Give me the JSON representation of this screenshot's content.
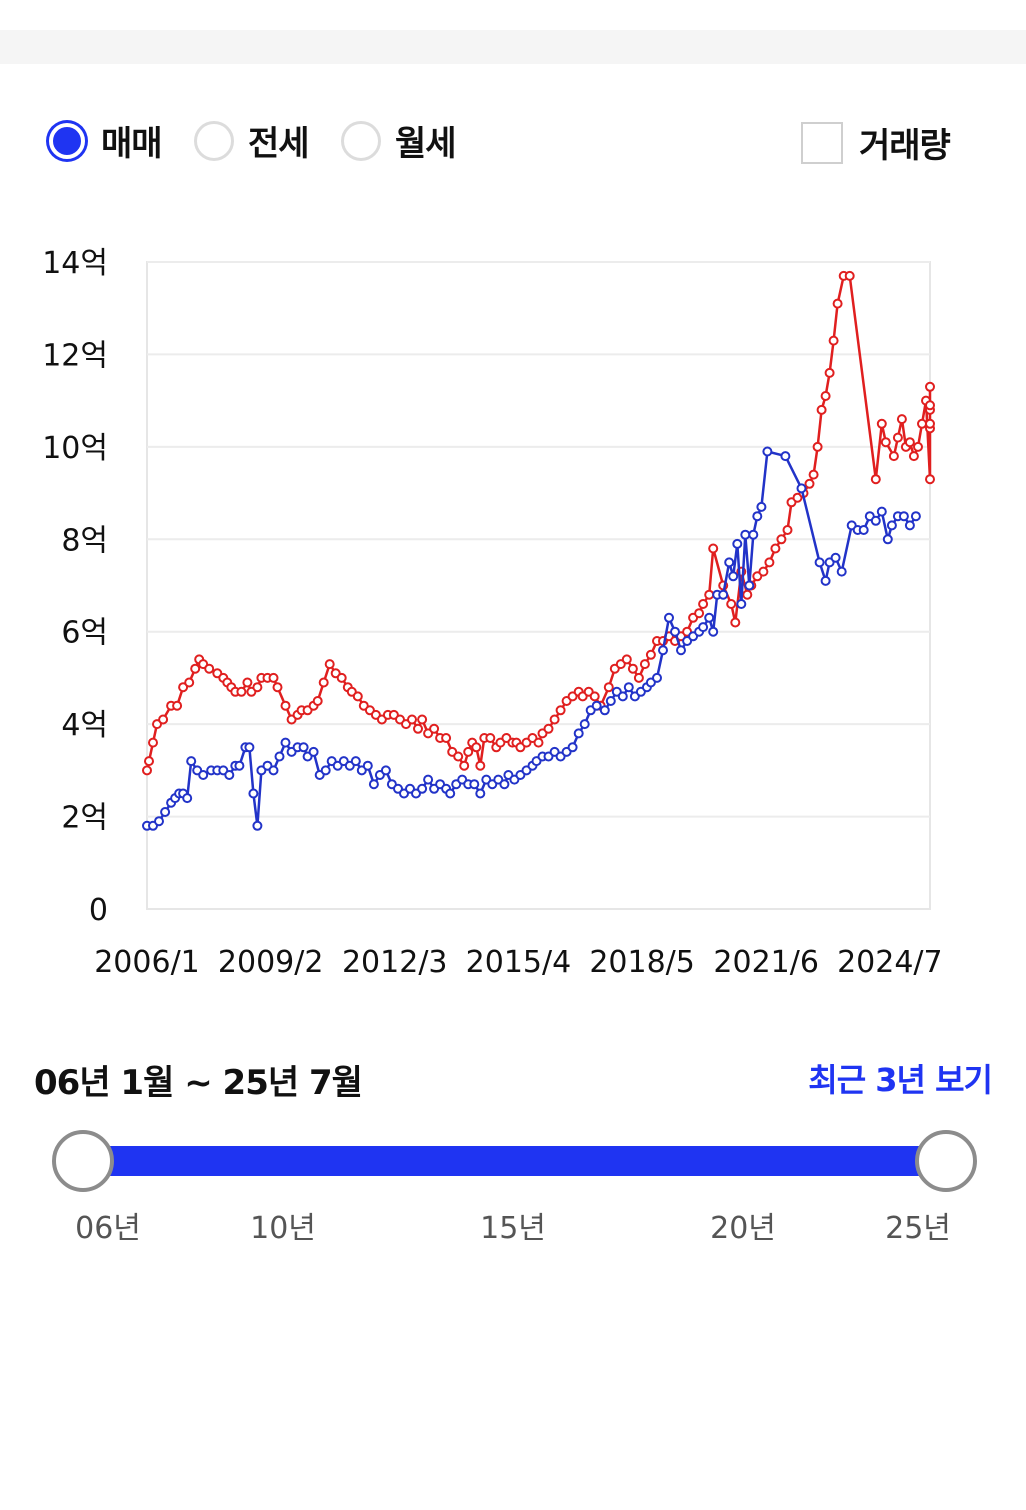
{
  "price_types": [
    {
      "label": "매매",
      "checked": true
    },
    {
      "label": "전세",
      "checked": false
    },
    {
      "label": "월세",
      "checked": false
    }
  ],
  "volume_checkbox": {
    "label": "거래량",
    "checked": false
  },
  "range": {
    "label": "06년 1월 ~ 25년 7월",
    "recent_button": "최근 3년 보기",
    "start": 2006.0,
    "end": 2025.5,
    "ticks": [
      "06년",
      "10년",
      "15년",
      "20년",
      "25년"
    ]
  },
  "colors": {
    "accent": "#1f34f2",
    "series_high": "#e01f1f",
    "series_low": "#2233c8"
  },
  "chart_data": {
    "type": "line",
    "ylim": [
      0,
      14
    ],
    "xlim": [
      2006.0,
      2025.5
    ],
    "y_ticks": [
      "0",
      "2억",
      "4억",
      "6억",
      "8억",
      "10억",
      "12억",
      "14억"
    ],
    "y_tick_values": [
      0,
      2,
      4,
      6,
      8,
      10,
      12,
      14
    ],
    "x_ticks": [
      "2006/1",
      "2009/2",
      "2012/3",
      "2015/4",
      "2018/5",
      "2021/6",
      "2024/7"
    ],
    "x_tick_values": [
      2006.0,
      2009.08,
      2012.17,
      2015.25,
      2018.33,
      2021.42,
      2024.5
    ],
    "grid": true,
    "series": [
      {
        "color": "#e01f1f",
        "points": [
          [
            2006.0,
            3.0
          ],
          [
            2006.05,
            3.2
          ],
          [
            2006.15,
            3.6
          ],
          [
            2006.25,
            4.0
          ],
          [
            2006.4,
            4.1
          ],
          [
            2006.6,
            4.4
          ],
          [
            2006.75,
            4.4
          ],
          [
            2006.9,
            4.8
          ],
          [
            2007.05,
            4.9
          ],
          [
            2007.2,
            5.2
          ],
          [
            2007.3,
            5.4
          ],
          [
            2007.4,
            5.3
          ],
          [
            2007.55,
            5.2
          ],
          [
            2007.75,
            5.1
          ],
          [
            2007.9,
            5.0
          ],
          [
            2008.0,
            4.9
          ],
          [
            2008.1,
            4.8
          ],
          [
            2008.2,
            4.7
          ],
          [
            2008.35,
            4.7
          ],
          [
            2008.5,
            4.9
          ],
          [
            2008.6,
            4.7
          ],
          [
            2008.75,
            4.8
          ],
          [
            2008.85,
            5.0
          ],
          [
            2009.0,
            5.0
          ],
          [
            2009.15,
            5.0
          ],
          [
            2009.25,
            4.8
          ],
          [
            2009.45,
            4.4
          ],
          [
            2009.6,
            4.1
          ],
          [
            2009.75,
            4.2
          ],
          [
            2009.85,
            4.3
          ],
          [
            2010.0,
            4.3
          ],
          [
            2010.15,
            4.4
          ],
          [
            2010.25,
            4.5
          ],
          [
            2010.4,
            4.9
          ],
          [
            2010.55,
            5.3
          ],
          [
            2010.7,
            5.1
          ],
          [
            2010.85,
            5.0
          ],
          [
            2011.0,
            4.8
          ],
          [
            2011.1,
            4.7
          ],
          [
            2011.25,
            4.6
          ],
          [
            2011.4,
            4.4
          ],
          [
            2011.55,
            4.3
          ],
          [
            2011.7,
            4.2
          ],
          [
            2011.85,
            4.1
          ],
          [
            2012.0,
            4.2
          ],
          [
            2012.15,
            4.2
          ],
          [
            2012.3,
            4.1
          ],
          [
            2012.45,
            4.0
          ],
          [
            2012.6,
            4.1
          ],
          [
            2012.75,
            3.9
          ],
          [
            2012.85,
            4.1
          ],
          [
            2013.0,
            3.8
          ],
          [
            2013.15,
            3.9
          ],
          [
            2013.3,
            3.7
          ],
          [
            2013.45,
            3.7
          ],
          [
            2013.6,
            3.4
          ],
          [
            2013.75,
            3.3
          ],
          [
            2013.9,
            3.1
          ],
          [
            2014.0,
            3.4
          ],
          [
            2014.1,
            3.6
          ],
          [
            2014.2,
            3.5
          ],
          [
            2014.3,
            3.1
          ],
          [
            2014.4,
            3.7
          ],
          [
            2014.55,
            3.7
          ],
          [
            2014.7,
            3.5
          ],
          [
            2014.8,
            3.6
          ],
          [
            2014.95,
            3.7
          ],
          [
            2015.1,
            3.6
          ],
          [
            2015.2,
            3.6
          ],
          [
            2015.3,
            3.5
          ],
          [
            2015.45,
            3.6
          ],
          [
            2015.6,
            3.7
          ],
          [
            2015.75,
            3.6
          ],
          [
            2015.85,
            3.8
          ],
          [
            2016.0,
            3.9
          ],
          [
            2016.15,
            4.1
          ],
          [
            2016.3,
            4.3
          ],
          [
            2016.45,
            4.5
          ],
          [
            2016.6,
            4.6
          ],
          [
            2016.75,
            4.7
          ],
          [
            2016.85,
            4.6
          ],
          [
            2017.0,
            4.7
          ],
          [
            2017.15,
            4.6
          ],
          [
            2017.3,
            4.4
          ],
          [
            2017.5,
            4.8
          ],
          [
            2017.65,
            5.2
          ],
          [
            2017.8,
            5.3
          ],
          [
            2017.95,
            5.4
          ],
          [
            2018.1,
            5.2
          ],
          [
            2018.25,
            5.0
          ],
          [
            2018.4,
            5.3
          ],
          [
            2018.55,
            5.5
          ],
          [
            2018.7,
            5.8
          ],
          [
            2018.85,
            5.8
          ],
          [
            2019.0,
            5.9
          ],
          [
            2019.15,
            5.8
          ],
          [
            2019.3,
            5.9
          ],
          [
            2019.45,
            6.0
          ],
          [
            2019.6,
            6.3
          ],
          [
            2019.75,
            6.4
          ],
          [
            2019.85,
            6.6
          ],
          [
            2020.0,
            6.8
          ],
          [
            2020.1,
            7.8
          ],
          [
            2020.35,
            7.0
          ],
          [
            2020.55,
            6.6
          ],
          [
            2020.65,
            6.2
          ],
          [
            2020.8,
            7.3
          ],
          [
            2020.95,
            6.8
          ],
          [
            2021.05,
            7.0
          ],
          [
            2021.2,
            7.2
          ],
          [
            2021.35,
            7.3
          ],
          [
            2021.5,
            7.5
          ],
          [
            2021.65,
            7.8
          ],
          [
            2021.8,
            8.0
          ],
          [
            2021.95,
            8.2
          ],
          [
            2022.05,
            8.8
          ],
          [
            2022.2,
            8.9
          ],
          [
            2022.35,
            9.0
          ],
          [
            2022.5,
            9.2
          ],
          [
            2022.6,
            9.4
          ],
          [
            2022.7,
            10.0
          ],
          [
            2022.8,
            10.8
          ],
          [
            2022.9,
            11.1
          ],
          [
            2023.0,
            11.6
          ],
          [
            2023.1,
            12.3
          ],
          [
            2023.2,
            13.1
          ],
          [
            2023.35,
            13.7
          ],
          [
            2023.5,
            13.7
          ],
          [
            2024.15,
            9.3
          ],
          [
            2024.3,
            10.5
          ],
          [
            2024.4,
            10.1
          ],
          [
            2024.6,
            9.8
          ],
          [
            2024.7,
            10.2
          ],
          [
            2024.8,
            10.6
          ],
          [
            2024.9,
            10.0
          ],
          [
            2025.0,
            10.1
          ],
          [
            2025.1,
            9.8
          ],
          [
            2025.2,
            10.0
          ],
          [
            2025.3,
            10.5
          ],
          [
            2025.4,
            11.0
          ],
          [
            2025.5,
            9.3
          ],
          [
            2025.6,
            10.8
          ],
          [
            2025.7,
            10.4
          ],
          [
            2025.8,
            10.9
          ],
          [
            2025.9,
            10.5
          ],
          [
            2026.0,
            11.3
          ]
        ]
      },
      {
        "color": "#2233c8",
        "points": [
          [
            2006.0,
            1.8
          ],
          [
            2006.15,
            1.8
          ],
          [
            2006.3,
            1.9
          ],
          [
            2006.45,
            2.1
          ],
          [
            2006.6,
            2.3
          ],
          [
            2006.7,
            2.4
          ],
          [
            2006.8,
            2.5
          ],
          [
            2006.9,
            2.5
          ],
          [
            2007.0,
            2.4
          ],
          [
            2007.1,
            3.2
          ],
          [
            2007.25,
            3.0
          ],
          [
            2007.4,
            2.9
          ],
          [
            2007.6,
            3.0
          ],
          [
            2007.75,
            3.0
          ],
          [
            2007.9,
            3.0
          ],
          [
            2008.05,
            2.9
          ],
          [
            2008.2,
            3.1
          ],
          [
            2008.3,
            3.1
          ],
          [
            2008.45,
            3.5
          ],
          [
            2008.55,
            3.5
          ],
          [
            2008.65,
            2.5
          ],
          [
            2008.75,
            1.8
          ],
          [
            2008.85,
            3.0
          ],
          [
            2009.0,
            3.1
          ],
          [
            2009.15,
            3.0
          ],
          [
            2009.3,
            3.3
          ],
          [
            2009.45,
            3.6
          ],
          [
            2009.6,
            3.4
          ],
          [
            2009.75,
            3.5
          ],
          [
            2009.9,
            3.5
          ],
          [
            2010.0,
            3.3
          ],
          [
            2010.15,
            3.4
          ],
          [
            2010.3,
            2.9
          ],
          [
            2010.45,
            3.0
          ],
          [
            2010.6,
            3.2
          ],
          [
            2010.75,
            3.1
          ],
          [
            2010.9,
            3.2
          ],
          [
            2011.05,
            3.1
          ],
          [
            2011.2,
            3.2
          ],
          [
            2011.35,
            3.0
          ],
          [
            2011.5,
            3.1
          ],
          [
            2011.65,
            2.7
          ],
          [
            2011.8,
            2.9
          ],
          [
            2011.95,
            3.0
          ],
          [
            2012.1,
            2.7
          ],
          [
            2012.25,
            2.6
          ],
          [
            2012.4,
            2.5
          ],
          [
            2012.55,
            2.6
          ],
          [
            2012.7,
            2.5
          ],
          [
            2012.85,
            2.6
          ],
          [
            2013.0,
            2.8
          ],
          [
            2013.15,
            2.6
          ],
          [
            2013.3,
            2.7
          ],
          [
            2013.45,
            2.6
          ],
          [
            2013.55,
            2.5
          ],
          [
            2013.7,
            2.7
          ],
          [
            2013.85,
            2.8
          ],
          [
            2014.0,
            2.7
          ],
          [
            2014.15,
            2.7
          ],
          [
            2014.3,
            2.5
          ],
          [
            2014.45,
            2.8
          ],
          [
            2014.6,
            2.7
          ],
          [
            2014.75,
            2.8
          ],
          [
            2014.9,
            2.7
          ],
          [
            2015.0,
            2.9
          ],
          [
            2015.15,
            2.8
          ],
          [
            2015.3,
            2.9
          ],
          [
            2015.45,
            3.0
          ],
          [
            2015.6,
            3.1
          ],
          [
            2015.7,
            3.2
          ],
          [
            2015.85,
            3.3
          ],
          [
            2016.0,
            3.3
          ],
          [
            2016.15,
            3.4
          ],
          [
            2016.3,
            3.3
          ],
          [
            2016.45,
            3.4
          ],
          [
            2016.6,
            3.5
          ],
          [
            2016.75,
            3.8
          ],
          [
            2016.9,
            4.0
          ],
          [
            2017.05,
            4.3
          ],
          [
            2017.2,
            4.4
          ],
          [
            2017.4,
            4.3
          ],
          [
            2017.55,
            4.5
          ],
          [
            2017.7,
            4.7
          ],
          [
            2017.85,
            4.6
          ],
          [
            2018.0,
            4.8
          ],
          [
            2018.15,
            4.6
          ],
          [
            2018.3,
            4.7
          ],
          [
            2018.45,
            4.8
          ],
          [
            2018.55,
            4.9
          ],
          [
            2018.7,
            5.0
          ],
          [
            2018.85,
            5.6
          ],
          [
            2019.0,
            6.3
          ],
          [
            2019.15,
            6.0
          ],
          [
            2019.3,
            5.6
          ],
          [
            2019.45,
            5.8
          ],
          [
            2019.6,
            5.9
          ],
          [
            2019.75,
            6.0
          ],
          [
            2019.85,
            6.1
          ],
          [
            2020.0,
            6.3
          ],
          [
            2020.1,
            6.0
          ],
          [
            2020.2,
            6.8
          ],
          [
            2020.35,
            6.8
          ],
          [
            2020.5,
            7.5
          ],
          [
            2020.6,
            7.2
          ],
          [
            2020.7,
            7.9
          ],
          [
            2020.8,
            6.6
          ],
          [
            2020.9,
            8.1
          ],
          [
            2021.0,
            7.0
          ],
          [
            2021.1,
            8.1
          ],
          [
            2021.2,
            8.5
          ],
          [
            2021.3,
            8.7
          ],
          [
            2021.45,
            9.9
          ],
          [
            2021.9,
            9.8
          ],
          [
            2022.3,
            9.1
          ],
          [
            2022.75,
            7.5
          ],
          [
            2022.9,
            7.1
          ],
          [
            2023.0,
            7.5
          ],
          [
            2023.15,
            7.6
          ],
          [
            2023.3,
            7.3
          ],
          [
            2023.55,
            8.3
          ],
          [
            2023.7,
            8.2
          ],
          [
            2023.85,
            8.2
          ],
          [
            2024.0,
            8.5
          ],
          [
            2024.15,
            8.4
          ],
          [
            2024.3,
            8.6
          ],
          [
            2024.45,
            8.0
          ],
          [
            2024.55,
            8.3
          ],
          [
            2024.7,
            8.5
          ],
          [
            2024.85,
            8.5
          ],
          [
            2025.0,
            8.3
          ],
          [
            2025.15,
            8.5
          ]
        ]
      }
    ]
  }
}
